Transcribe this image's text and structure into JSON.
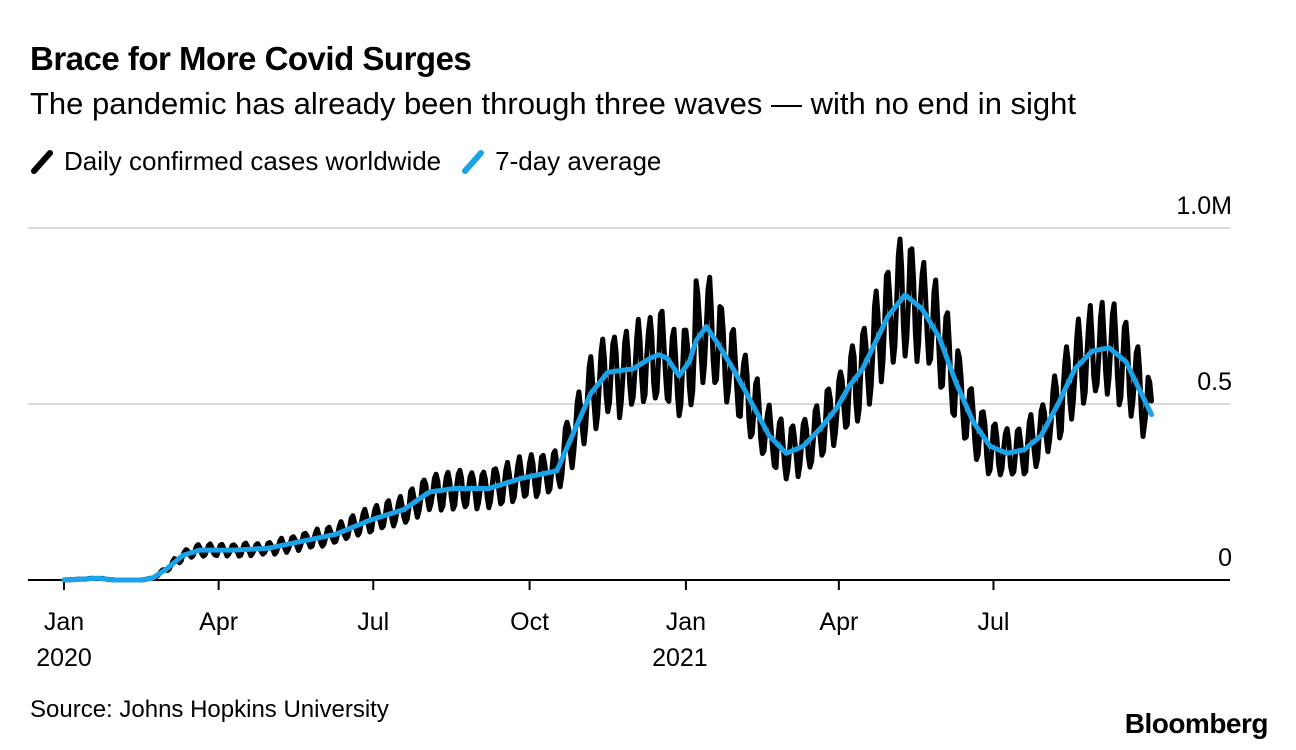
{
  "header": {
    "title": "Brace for More Covid Surges",
    "subtitle": "The pandemic has already been through three waves — with no end in sight"
  },
  "legend": {
    "daily_label": "Daily confirmed cases worldwide",
    "avg_label": "7-day average"
  },
  "footer": {
    "source": "Source: Johns Hopkins University",
    "brand": "Bloomberg"
  },
  "colors": {
    "daily": "#000000",
    "avg": "#1aa3e8",
    "grid": "#d9d9d9"
  },
  "chart_data": {
    "type": "line",
    "title": "Brace for More Covid Surges",
    "subtitle": "The pandemic has already been through three waves — with no end in sight",
    "xlabel": "",
    "ylabel": "",
    "x_domain_days_since_2020_01_01": [
      0,
      645
    ],
    "ylim": [
      0,
      1.0
    ],
    "y_unit": "millions of cases",
    "y_ticks": [
      {
        "value": 0,
        "label": "0"
      },
      {
        "value": 0.5,
        "label": "0.5"
      },
      {
        "value": 1.0,
        "label": "1.0M"
      }
    ],
    "x_ticks": [
      {
        "day": 0,
        "label": "Jan",
        "year": "2020"
      },
      {
        "day": 91,
        "label": "Apr",
        "year": ""
      },
      {
        "day": 182,
        "label": "Jul",
        "year": ""
      },
      {
        "day": 274,
        "label": "Oct",
        "year": ""
      },
      {
        "day": 366,
        "label": "Jan",
        "year": "2021"
      },
      {
        "day": 456,
        "label": "Apr",
        "year": ""
      },
      {
        "day": 547,
        "label": "Jul",
        "year": ""
      }
    ],
    "series": [
      {
        "name": "7-day average",
        "days": [
          0,
          20,
          30,
          45,
          52,
          60,
          70,
          80,
          100,
          120,
          140,
          160,
          180,
          200,
          215,
          230,
          250,
          270,
          280,
          290,
          300,
          310,
          320,
          335,
          345,
          350,
          355,
          362,
          368,
          372,
          378,
          385,
          395,
          405,
          415,
          425,
          435,
          445,
          455,
          462,
          470,
          478,
          485,
          495,
          505,
          515,
          525,
          535,
          545,
          555,
          565,
          575,
          585,
          595,
          605,
          615,
          625,
          635,
          640
        ],
        "values": [
          0,
          0.005,
          0,
          0,
          0.005,
          0.03,
          0.07,
          0.085,
          0.085,
          0.09,
          0.11,
          0.13,
          0.17,
          0.2,
          0.25,
          0.26,
          0.26,
          0.29,
          0.3,
          0.31,
          0.42,
          0.53,
          0.59,
          0.6,
          0.63,
          0.64,
          0.63,
          0.58,
          0.62,
          0.68,
          0.72,
          0.67,
          0.59,
          0.5,
          0.41,
          0.36,
          0.38,
          0.43,
          0.49,
          0.55,
          0.6,
          0.68,
          0.75,
          0.81,
          0.77,
          0.69,
          0.56,
          0.45,
          0.38,
          0.36,
          0.37,
          0.41,
          0.5,
          0.6,
          0.65,
          0.66,
          0.62,
          0.52,
          0.47
        ]
      },
      {
        "name": "Daily confirmed cases worldwide",
        "derived_from": "7-day average with weekly oscillation",
        "weekly_amplitude_fraction": 0.2
      }
    ]
  }
}
